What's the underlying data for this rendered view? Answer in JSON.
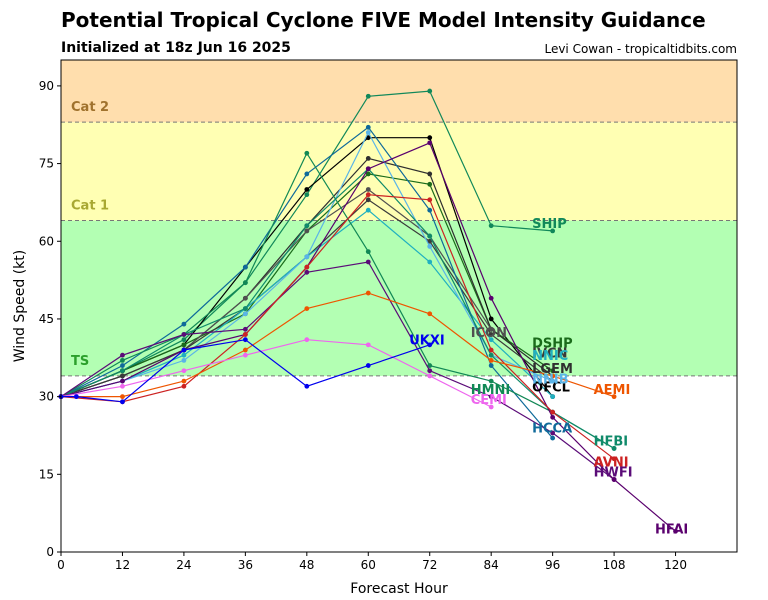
{
  "chart_data": {
    "type": "line",
    "title": "Potential Tropical Cyclone FIVE Model Intensity Guidance",
    "subtitle": "Initialized at 18z Jun 16 2025",
    "credit": "Levi Cowan - tropicaltidbits.com",
    "xlabel": "Forecast Hour",
    "ylabel": "Wind Speed (kt)",
    "xlim": [
      0,
      132
    ],
    "ylim": [
      0,
      95
    ],
    "x_ticks": [
      0,
      12,
      24,
      36,
      48,
      60,
      72,
      84,
      96,
      108,
      120
    ],
    "y_ticks": [
      0,
      15,
      30,
      45,
      60,
      75,
      90
    ],
    "grid": false,
    "bands": [
      {
        "label": "TS",
        "from": 34,
        "to": 64,
        "color": "#b3ffb3",
        "label_color": "#2ca02c"
      },
      {
        "label": "Cat 1",
        "from": 64,
        "to": 83,
        "color": "#ffffb3",
        "label_color": "#a8a832"
      },
      {
        "label": "Cat 2",
        "from": 83,
        "to": 95,
        "color": "#ffdead",
        "label_color": "#a0722d"
      }
    ],
    "series": [
      {
        "name": "SHIP",
        "color": "#11885a",
        "label_at": [
          92,
          63.5
        ],
        "x": [
          0,
          12,
          24,
          36,
          48,
          60,
          72,
          84,
          96
        ],
        "y": [
          30,
          35,
          41,
          52,
          69,
          88,
          89,
          63,
          62
        ]
      },
      {
        "name": "OFCL",
        "color": "#000000",
        "label_at": [
          92,
          32
        ],
        "x": [
          0,
          12,
          24,
          36,
          48,
          60,
          72,
          84,
          96
        ],
        "y": [
          30,
          35,
          40,
          55,
          70,
          80,
          80,
          45,
          30
        ]
      },
      {
        "name": "DSHP",
        "color": "#1a6b1a",
        "label_at": [
          92,
          40.5
        ],
        "x": [
          0,
          12,
          24,
          36,
          48,
          60,
          72,
          84,
          96
        ],
        "y": [
          30,
          35,
          40,
          46,
          62,
          73,
          71,
          43,
          35
        ]
      },
      {
        "name": "LGEM",
        "color": "#2f2f2f",
        "label_at": [
          92,
          35.5
        ],
        "x": [
          0,
          12,
          24,
          36,
          48,
          60,
          72,
          84,
          96
        ],
        "y": [
          30,
          34,
          39,
          49,
          63,
          76,
          73,
          43,
          34
        ]
      },
      {
        "name": "ICON",
        "color": "#505050",
        "label_at": [
          80,
          42.5
        ],
        "x": [
          0,
          12,
          24,
          36,
          48,
          60,
          72,
          84
        ],
        "y": [
          30,
          34,
          39,
          49,
          62,
          70,
          61,
          43
        ]
      },
      {
        "name": "IVCN",
        "color": "#3a3a3a",
        "label_at": [
          92,
          38.5
        ],
        "x": [
          0,
          12,
          24,
          36,
          48,
          60,
          72,
          84,
          96
        ],
        "y": [
          30,
          34,
          39,
          47,
          57,
          68,
          60,
          42,
          33
        ]
      },
      {
        "name": "NNIC",
        "color": "#20b0c0",
        "label_at": [
          92,
          38
        ],
        "x": [
          0,
          12,
          24,
          36,
          48,
          60,
          72,
          84,
          96
        ],
        "y": [
          30,
          33,
          38,
          47,
          57,
          66,
          56,
          41,
          30
        ]
      },
      {
        "name": "NNIB",
        "color": "#5ab4e8",
        "label_at": [
          92,
          33.5
        ],
        "x": [
          0,
          12,
          24,
          36,
          48,
          60,
          72,
          84,
          96
        ],
        "y": [
          30,
          33,
          37,
          46,
          57,
          81,
          59,
          38,
          33
        ]
      },
      {
        "name": "HCCA",
        "color": "#0f6a9a",
        "label_at": [
          92,
          24
        ],
        "x": [
          0,
          12,
          24,
          36,
          48,
          60,
          72,
          84,
          96
        ],
        "y": [
          30,
          36,
          44,
          55,
          73,
          82,
          66,
          36,
          22
        ]
      },
      {
        "name": "HMNI",
        "color": "#118855",
        "label_at": [
          80,
          31.5
        ],
        "x": [
          0,
          12,
          24,
          36,
          48,
          60,
          72,
          84,
          96,
          108
        ],
        "y": [
          30,
          37,
          42,
          52,
          77,
          58,
          36,
          33,
          27,
          20
        ]
      },
      {
        "name": "HFBI",
        "color": "#108a6a",
        "label_at": [
          104,
          21.5
        ],
        "x": [
          0,
          12,
          24,
          36,
          48,
          60,
          72,
          84,
          96,
          108
        ],
        "y": [
          30,
          35,
          42,
          47,
          63,
          74,
          61,
          38,
          27,
          20
        ]
      },
      {
        "name": "HWFI",
        "color": "#5b0c78",
        "label_at": [
          104,
          15.5
        ],
        "x": [
          0,
          12,
          24,
          36,
          48,
          60,
          72,
          84,
          96,
          108
        ],
        "y": [
          30,
          38,
          42,
          43,
          54,
          56,
          35,
          30,
          23,
          14
        ]
      },
      {
        "name": "HFAI",
        "color": "#5a006e",
        "label_at": [
          116,
          4.5
        ],
        "x": [
          0,
          12,
          24,
          36,
          48,
          60,
          72,
          84,
          96,
          108,
          120
        ],
        "y": [
          30,
          33,
          39,
          42,
          55,
          74,
          79,
          49,
          26,
          14,
          4
        ]
      },
      {
        "name": "AVNI",
        "color": "#cc2222",
        "label_at": [
          104,
          17.5
        ],
        "x": [
          0,
          12,
          24,
          36,
          48,
          60,
          72,
          84,
          96,
          108
        ],
        "y": [
          30,
          29,
          32,
          42,
          55,
          69,
          68,
          39,
          27,
          18
        ]
      },
      {
        "name": "AEMI",
        "color": "#ee5500",
        "label_at": [
          104,
          31.5
        ],
        "x": [
          0,
          12,
          24,
          36,
          48,
          60,
          72,
          84,
          96,
          108
        ],
        "y": [
          30,
          30,
          33,
          39,
          47,
          50,
          46,
          37,
          34,
          30
        ]
      },
      {
        "name": "CEMI",
        "color": "#ee66ee",
        "label_at": [
          80,
          29.5
        ],
        "x": [
          0,
          12,
          24,
          36,
          48,
          60,
          72,
          84
        ],
        "y": [
          30,
          32,
          35,
          38,
          41,
          40,
          34,
          28
        ]
      },
      {
        "name": "UKXI",
        "color": "#0000ee",
        "label_at": [
          68,
          41
        ],
        "x": [
          0,
          3,
          12,
          24,
          36,
          48,
          60,
          72
        ],
        "y": [
          30,
          30,
          29,
          39,
          41,
          32,
          36,
          40
        ]
      }
    ]
  }
}
